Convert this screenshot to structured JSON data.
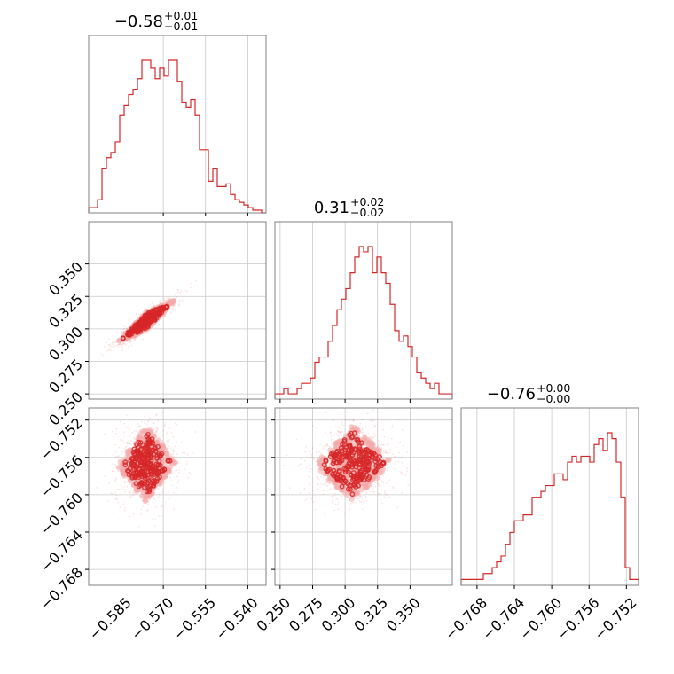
{
  "chart_data": {
    "type": "corner",
    "colors": {
      "main": "#d62728",
      "fill": "#f4a9aa",
      "grid": "#c8c8c8"
    },
    "params": [
      {
        "median": "−0.58",
        "plus": "+0.01",
        "minus": "−0.01",
        "range": [
          -0.5965,
          -0.5335
        ],
        "ticks": [
          {
            "v": -0.585,
            "t": "−0.585"
          },
          {
            "v": -0.57,
            "t": "−0.570"
          },
          {
            "v": -0.555,
            "t": "−0.555"
          },
          {
            "v": -0.54,
            "t": "−0.540"
          }
        ]
      },
      {
        "median": "0.31",
        "plus": "+0.02",
        "minus": "−0.02",
        "range": [
          0.246,
          0.3825
        ],
        "ticks": [
          {
            "v": 0.25,
            "t": "0.250"
          },
          {
            "v": 0.275,
            "t": "0.275"
          },
          {
            "v": 0.3,
            "t": "0.300"
          },
          {
            "v": 0.325,
            "t": "0.325"
          },
          {
            "v": 0.35,
            "t": "0.350"
          }
        ]
      },
      {
        "median": "−0.76",
        "plus": "+0.00",
        "minus": "−0.00",
        "range": [
          -0.7697,
          -0.7507
        ],
        "ticks": [
          {
            "v": -0.768,
            "t": "−0.768"
          },
          {
            "v": -0.764,
            "t": "−0.764"
          },
          {
            "v": -0.76,
            "t": "−0.760"
          },
          {
            "v": -0.756,
            "t": "−0.756"
          },
          {
            "v": -0.752,
            "t": "−0.752"
          }
        ]
      }
    ],
    "histograms": [
      {
        "bins": 40,
        "counts": [
          2,
          2,
          5,
          17,
          21,
          23,
          27,
          37,
          41,
          45,
          47,
          51,
          58,
          58,
          55,
          51,
          55,
          52,
          58,
          58,
          50,
          42,
          40,
          43,
          37,
          24,
          24,
          12,
          17,
          10,
          10,
          11,
          7,
          5,
          4,
          3,
          2,
          1,
          1,
          0
        ]
      },
      {
        "bins": 40,
        "counts": [
          1,
          1,
          2,
          1,
          1,
          2,
          3,
          3,
          4,
          7,
          8,
          8,
          11,
          14,
          17,
          19,
          21,
          24,
          27,
          29,
          28,
          29,
          24,
          27,
          24,
          22,
          18,
          13,
          11,
          12,
          10,
          8,
          5,
          4,
          3,
          2,
          3,
          1,
          1,
          1
        ]
      },
      {
        "bins": 40,
        "counts": [
          1,
          1,
          1,
          1,
          1,
          2,
          2,
          3,
          4,
          5,
          7,
          9,
          11,
          11,
          12,
          12,
          15,
          15,
          16,
          17,
          17,
          19,
          19,
          18,
          21,
          22,
          21,
          22,
          22,
          21,
          24,
          25,
          23,
          26,
          25,
          21,
          15,
          3,
          1,
          1
        ]
      }
    ],
    "pairs": [
      {
        "x": 0,
        "y": 1,
        "center": [
          -0.576,
          0.306
        ],
        "spread": [
          0.0055,
          0.0095
        ],
        "rho": 0.92
      },
      {
        "x": 0,
        "y": 2,
        "center": [
          -0.576,
          -0.7567
        ],
        "spread": [
          0.0055,
          0.0022
        ],
        "rho": 0.05
      },
      {
        "x": 1,
        "y": 2,
        "center": [
          0.306,
          -0.7567
        ],
        "spread": [
          0.016,
          0.0022
        ],
        "rho": 0.05
      }
    ]
  }
}
